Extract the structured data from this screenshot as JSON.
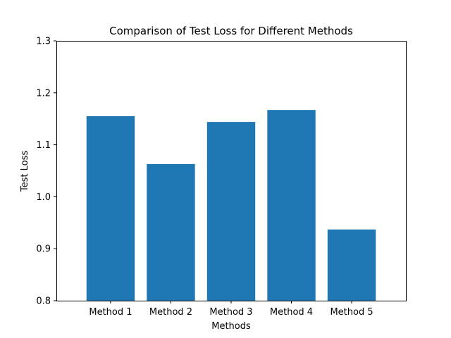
{
  "chart_data": {
    "type": "bar",
    "title": "Comparison of Test Loss for Different Methods",
    "xlabel": "Methods",
    "ylabel": "Test Loss",
    "categories": [
      "Method 1",
      "Method 2",
      "Method 3",
      "Method 4",
      "Method 5"
    ],
    "values": [
      1.155,
      1.063,
      1.144,
      1.167,
      0.937
    ],
    "ylim": [
      0.8,
      1.3
    ],
    "yticks": [
      "0.8",
      "0.9",
      "1.0",
      "1.1",
      "1.2",
      "1.3"
    ],
    "bar_color": "#1f77b4",
    "grid": false,
    "legend": false
  }
}
